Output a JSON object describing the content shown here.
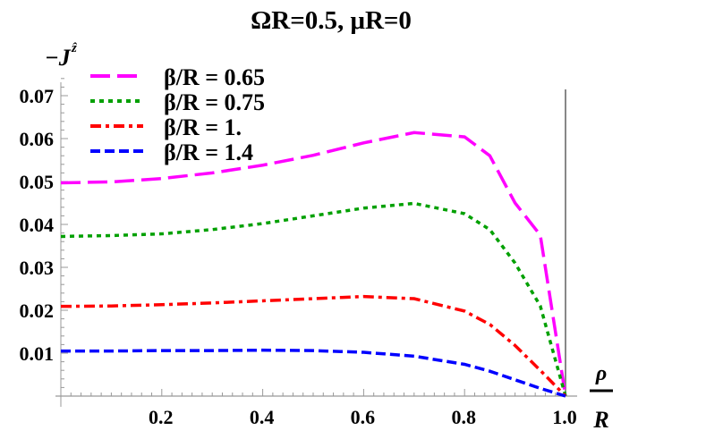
{
  "chart_data": {
    "type": "line",
    "title": "ΩR=0.5, μR=0",
    "ylabel": "−J^ẑ",
    "xlabel": "ρ/R",
    "xlabel_numerator": "ρ",
    "xlabel_denominator": "R",
    "ylabel_main": "−J",
    "ylabel_sup": "ẑ",
    "xlim": [
      0,
      1.0
    ],
    "ylim": [
      0,
      0.07
    ],
    "x_ticks": [
      "0.2",
      "0.4",
      "0.6",
      "0.8",
      "1.0"
    ],
    "x_tick_values": [
      0.2,
      0.4,
      0.6,
      0.8,
      1.0
    ],
    "y_ticks": [
      "0.01",
      "0.02",
      "0.03",
      "0.04",
      "0.05",
      "0.06",
      "0.07"
    ],
    "y_tick_values": [
      0.01,
      0.02,
      0.03,
      0.04,
      0.05,
      0.06,
      0.07
    ],
    "grid": false,
    "legend_position": "top-left",
    "x": [
      0,
      0.1,
      0.2,
      0.3,
      0.4,
      0.5,
      0.6,
      0.7,
      0.8,
      0.85,
      0.9,
      0.95,
      1.0
    ],
    "series": [
      {
        "name": "β/R = 0.65",
        "color": "#ff00ff",
        "dash": "long-dash",
        "values": [
          0.0497,
          0.0499,
          0.0507,
          0.052,
          0.0538,
          0.0561,
          0.059,
          0.0614,
          0.0604,
          0.056,
          0.045,
          0.0375,
          0
        ]
      },
      {
        "name": "β/R = 0.75",
        "color": "#00a000",
        "dash": "dotted",
        "values": [
          0.0372,
          0.0374,
          0.0378,
          0.0388,
          0.0402,
          0.042,
          0.0438,
          0.0449,
          0.0425,
          0.0388,
          0.031,
          0.021,
          0
        ]
      },
      {
        "name": "β/R = 1.",
        "color": "#ff0000",
        "dash": "dash-dot",
        "values": [
          0.0209,
          0.021,
          0.0213,
          0.0217,
          0.0222,
          0.0227,
          0.0232,
          0.0227,
          0.0198,
          0.0167,
          0.0118,
          0.006,
          0
        ]
      },
      {
        "name": "β/R = 1.4",
        "color": "#0000ff",
        "dash": "dashed",
        "values": [
          0.0105,
          0.0105,
          0.0106,
          0.0106,
          0.0107,
          0.0106,
          0.0102,
          0.0093,
          0.0074,
          0.0058,
          0.0038,
          0.0018,
          0
        ]
      }
    ]
  }
}
